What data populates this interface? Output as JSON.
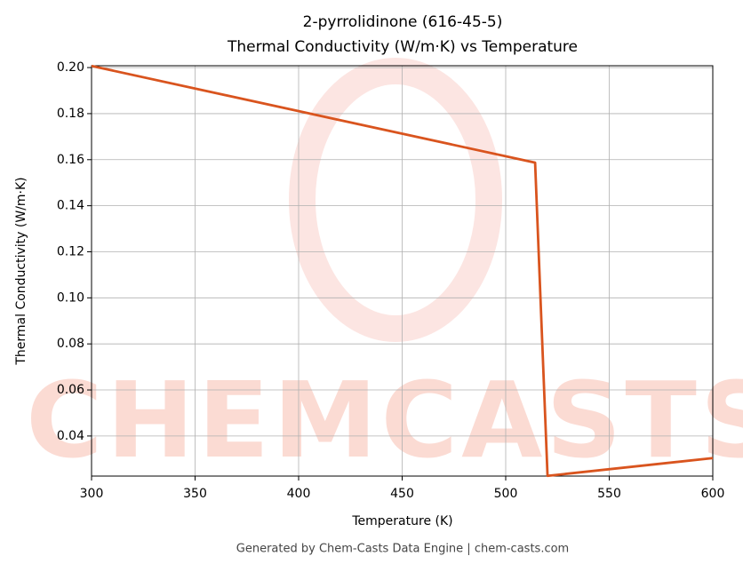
{
  "chart_data": {
    "type": "line",
    "title": "2-pyrrolidinone (616-45-5)",
    "subtitle": "Thermal Conductivity (W/m·K) vs Temperature",
    "x_label": "Temperature (K)",
    "y_label": "Thermal Conductivity (W/m·K)",
    "x": [
      300,
      514.2,
      520.2,
      600
    ],
    "series": [
      {
        "name": "Thermal Conductivity",
        "color": "#d9541e",
        "values": [
          0.2007,
          0.1587,
          0.0227,
          0.0304
        ]
      }
    ],
    "xlim": [
      300,
      600
    ],
    "xticks": [
      300,
      350,
      400,
      450,
      500,
      550,
      600
    ],
    "ylim": [
      0.0226,
      0.2008
    ],
    "yticks": [
      0.04,
      0.06,
      0.08,
      {
        "value": 0.1,
        "label": "0.10"
      },
      0.12,
      0.14,
      0.16,
      0.18,
      {
        "value": 0.2,
        "label": "0.20"
      }
    ],
    "grid": true,
    "watermark": "CHEMCASTS",
    "footer": "Generated by Chem-Casts Data Engine | chem-casts.com"
  }
}
